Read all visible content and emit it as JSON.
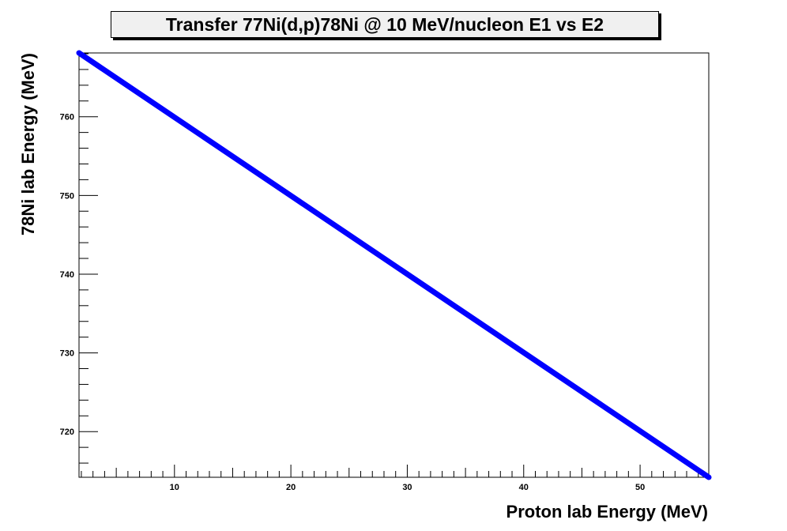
{
  "chart_data": {
    "type": "line",
    "title": "Transfer 77Ni(d,p)78Ni @ 10 MeV/nucleon E1 vs E2",
    "xlabel": "Proton lab Energy (MeV)",
    "ylabel": "78Ni lab Energy (MeV)",
    "xlim": [
      1.8,
      55.9
    ],
    "ylim": [
      714.2,
      768.1
    ],
    "x_ticks": [
      10,
      20,
      30,
      40,
      50
    ],
    "y_ticks": [
      720,
      730,
      740,
      750,
      760
    ],
    "grid": false,
    "series": [
      {
        "color": "#0000ff",
        "x": [
          1.8,
          55.9
        ],
        "y": [
          768.1,
          714.2
        ]
      }
    ]
  }
}
